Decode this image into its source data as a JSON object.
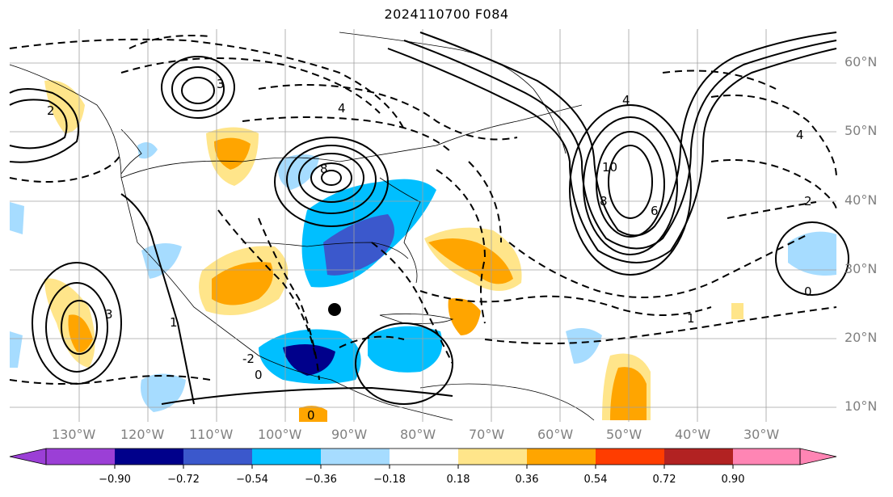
{
  "title": "2024110700 F084",
  "lat_labels": [
    "60°N",
    "50°N",
    "40°N",
    "30°N",
    "20°N",
    "10°N"
  ],
  "lon_labels": [
    "130°W",
    "120°W",
    "110°W",
    "100°W",
    "90°W",
    "80°W",
    "70°W",
    "60°W",
    "50°W",
    "40°W",
    "30°W"
  ],
  "contour_labels": [
    "-2",
    "0",
    "1",
    "2",
    "3",
    "4",
    "6",
    "8",
    "10"
  ],
  "colorbar": {
    "ticks": [
      "−0.90",
      "−0.72",
      "−0.54",
      "−0.36",
      "−0.18",
      "0.18",
      "0.36",
      "0.54",
      "0.72",
      "0.90"
    ],
    "colors": [
      "#9b3fd6",
      "#00008b",
      "#3b58cc",
      "#00bfff",
      "#a6dcff",
      "#ffffff",
      "#ffe58a",
      "#ffa500",
      "#ff3d00",
      "#b22222",
      "#ff85b4"
    ]
  },
  "colors": {
    "land_outline": "#000000",
    "grid": "#a0a0a0",
    "storm_marker": "#000000"
  }
}
